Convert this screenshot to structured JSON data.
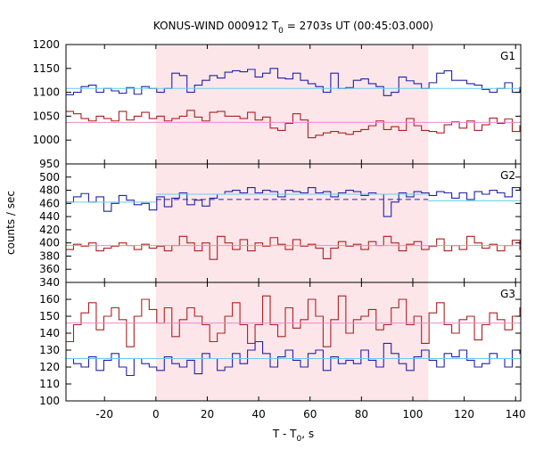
{
  "figure": {
    "title_main": "KONUS-WIND 000912 T",
    "title_sub": "0",
    "title_rest": " = 2703s UT (00:45:03.000)",
    "ylabel": "counts / sec",
    "xlabel_main": "T - T",
    "xlabel_sub": "0",
    "xlabel_rest": ", s"
  },
  "chart_data": [
    {
      "type": "line",
      "panel": "G1",
      "title": "G1",
      "xlim": [
        -35,
        142
      ],
      "ylim": [
        950,
        1200
      ],
      "yticks": [
        950,
        1000,
        1050,
        1100,
        1150,
        1200
      ],
      "xticks": [
        -20,
        0,
        20,
        40,
        60,
        80,
        100,
        120,
        140
      ],
      "shaded_interval": [
        0,
        106
      ],
      "step_width": 2.944,
      "x_start": -35,
      "series": [
        {
          "color": "#2222aa",
          "style": "step",
          "values": [
            1095,
            1100,
            1112,
            1115,
            1100,
            1108,
            1103,
            1098,
            1110,
            1096,
            1112,
            1108,
            1100,
            1108,
            1140,
            1135,
            1100,
            1115,
            1125,
            1135,
            1130,
            1142,
            1145,
            1143,
            1148,
            1132,
            1140,
            1150,
            1130,
            1128,
            1140,
            1125,
            1118,
            1112,
            1100,
            1140,
            1108,
            1110,
            1125,
            1128,
            1118,
            1112,
            1093,
            1100,
            1132,
            1124,
            1118,
            1108,
            1120,
            1140,
            1145,
            1125,
            1125,
            1118,
            1115,
            1106,
            1100,
            1108,
            1120,
            1100,
            1110,
            1118,
            1112,
            1120,
            1125,
            1108,
            1120,
            1112,
            1130,
            1120,
            1100,
            1098,
            1110,
            1130,
            1105,
            1130,
            1115,
            1130,
            1110,
            1102,
            1108,
            1110,
            1108,
            1128,
            1120,
            1132,
            1113,
            1105,
            1125,
            1116,
            1132,
            1100,
            1098,
            1112,
            1105,
            1130,
            1108,
            1118,
            1115,
            1123,
            1102,
            1110,
            1094,
            1080,
            1108,
            1100,
            1128,
            1118,
            1130,
            1100,
            1110,
            1128,
            1106,
            1118,
            1116,
            1112,
            1106,
            1108,
            1120,
            1100,
            1118,
            1130,
            1122,
            1110,
            1115,
            1120,
            1102,
            1108,
            1128,
            1118,
            1110,
            1120,
            1106,
            1118,
            1100,
            1126,
            1112,
            1103,
            1120,
            1122,
            1130,
            1115,
            1100,
            1110,
            1108,
            1128,
            1112,
            1120,
            1115
          ]
        },
        {
          "color": "#aa2222",
          "style": "step",
          "values": [
            1060,
            1055,
            1045,
            1040,
            1050,
            1045,
            1040,
            1060,
            1042,
            1050,
            1058,
            1045,
            1050,
            1040,
            1045,
            1050,
            1062,
            1048,
            1040,
            1058,
            1060,
            1050,
            1050,
            1045,
            1058,
            1042,
            1048,
            1025,
            1020,
            1035,
            1055,
            1042,
            1005,
            1010,
            1015,
            1018,
            1015,
            1012,
            1018,
            1022,
            1030,
            1040,
            1022,
            1028,
            1020,
            1045,
            1030,
            1020,
            1018,
            1015,
            1032,
            1038,
            1025,
            1040,
            1020,
            1032,
            1046,
            1035,
            1044,
            1018,
            1030,
            1040,
            1050,
            1010,
            1030,
            1052,
            1035,
            1048,
            1015,
            1038,
            1015,
            1020,
            1042,
            1020,
            1028,
            1020,
            1015,
            1060,
            1042,
            1012,
            1050,
            1040,
            1070,
            1048,
            1002,
            1022,
            1040,
            1018,
            1048,
            1040,
            1052,
            1030,
            1058,
            1040,
            1050,
            1060,
            1048,
            1060,
            1040,
            1045,
            1052,
            1058,
            1030,
            1050,
            1045,
            1060,
            1035,
            1058,
            1040,
            1048,
            1058,
            1050,
            1070,
            1010,
            1020,
            1042,
            1070,
            1048,
            1060,
            1052,
            1072,
            1050,
            1058,
            1045,
            1050,
            1060,
            1048,
            1055,
            1040,
            1045,
            1050,
            1058,
            1038,
            1048,
            1040,
            1062,
            1070,
            1048,
            1055,
            1065,
            1048,
            1050,
            1060,
            1045,
            1050,
            1040,
            1058,
            1052
          ]
        }
      ],
      "fits": [
        {
          "color": "#66ccee",
          "style": "solid",
          "segments": [
            [
              -35,
              142,
              1108
            ]
          ]
        },
        {
          "color": "#ee88cc",
          "style": "solid",
          "segments": [
            [
              -35,
              142,
              1037
            ]
          ]
        }
      ]
    },
    {
      "type": "line",
      "panel": "G2",
      "title": "G2",
      "xlim": [
        -35,
        142
      ],
      "ylim": [
        340,
        520
      ],
      "yticks": [
        340,
        360,
        380,
        400,
        420,
        440,
        460,
        480,
        500
      ],
      "xticks": [
        -20,
        0,
        20,
        40,
        60,
        80,
        100,
        120,
        140
      ],
      "shaded_interval": [
        0,
        106
      ],
      "step_width": 2.944,
      "x_start": -35,
      "series": [
        {
          "color": "#2222aa",
          "style": "step",
          "values": [
            462,
            470,
            475,
            462,
            470,
            448,
            460,
            472,
            465,
            458,
            460,
            450,
            470,
            455,
            468,
            476,
            458,
            465,
            456,
            468,
            474,
            478,
            480,
            476,
            484,
            476,
            480,
            478,
            470,
            480,
            478,
            476,
            484,
            476,
            478,
            470,
            476,
            480,
            478,
            472,
            476,
            474,
            440,
            462,
            476,
            470,
            478,
            476,
            472,
            478,
            476,
            468,
            476,
            466,
            478,
            474,
            480,
            476,
            470,
            484,
            480,
            478,
            484,
            490,
            486,
            478,
            472,
            474,
            476,
            480,
            466,
            484,
            478,
            476,
            470,
            462,
            470,
            476,
            466,
            462,
            472,
            474,
            470,
            466,
            476,
            470,
            466,
            468,
            474,
            472,
            468,
            470,
            466,
            462,
            472,
            468,
            470,
            462,
            468,
            470,
            464,
            466,
            460,
            470,
            462,
            464,
            468,
            460,
            466,
            468,
            462,
            464,
            460,
            466,
            462,
            464,
            468,
            460,
            462,
            466,
            464,
            462,
            460,
            466,
            462,
            460,
            464,
            462,
            466,
            460,
            464,
            462,
            460,
            466,
            462,
            464,
            460,
            462,
            466,
            460,
            462,
            464,
            460,
            466,
            462,
            464,
            460,
            462,
            466,
            464
          ]
        },
        {
          "color": "#aa2222",
          "style": "step",
          "values": [
            390,
            398,
            395,
            400,
            388,
            392,
            395,
            400,
            396,
            390,
            398,
            392,
            395,
            388,
            396,
            410,
            400,
            388,
            400,
            375,
            410,
            400,
            390,
            405,
            388,
            400,
            395,
            408,
            398,
            390,
            405,
            395,
            398,
            392,
            376,
            392,
            402,
            395,
            398,
            390,
            402,
            396,
            410,
            400,
            388,
            398,
            402,
            390,
            395,
            406,
            388,
            396,
            390,
            410,
            400,
            392,
            398,
            388,
            396,
            404,
            390,
            412,
            398,
            410,
            382,
            392,
            378,
            390,
            398,
            408,
            386,
            400,
            392,
            406,
            396,
            390,
            402,
            388,
            380,
            392,
            388,
            398,
            378,
            390,
            384,
            382,
            398,
            378,
            390,
            388,
            396,
            392,
            400,
            406,
            390,
            376,
            412,
            394,
            404,
            392,
            398,
            388,
            406,
            396,
            384,
            400,
            392,
            410,
            396,
            388,
            404,
            394,
            386,
            400,
            382,
            406,
            392,
            398,
            388,
            410,
            400,
            386,
            396,
            404,
            392,
            410,
            400,
            388,
            396,
            402,
            394,
            386,
            400,
            392,
            404,
            396,
            388,
            402,
            394,
            398,
            390,
            404,
            392,
            400,
            396,
            388,
            402,
            394,
            398,
            390
          ]
        }
      ],
      "fits": [
        {
          "color": "#66ccee",
          "style": "solid",
          "segments": [
            [
              -35,
              0,
              462
            ],
            [
              0,
              106,
              474
            ],
            [
              106,
              142,
              464
            ]
          ]
        },
        {
          "color": "#2222aa",
          "style": "dashed",
          "segments": [
            [
              0,
              106,
              466
            ]
          ]
        },
        {
          "color": "#ee88cc",
          "style": "solid",
          "segments": [
            [
              -35,
              142,
              396
            ]
          ]
        }
      ]
    },
    {
      "type": "line",
      "panel": "G3",
      "title": "G3",
      "xlim": [
        -35,
        142
      ],
      "ylim": [
        100,
        170
      ],
      "yticks": [
        100,
        110,
        120,
        130,
        140,
        150,
        160
      ],
      "xticks": [
        -20,
        0,
        20,
        40,
        60,
        80,
        100,
        120,
        140
      ],
      "shaded_interval": [
        0,
        106
      ],
      "step_width": 2.944,
      "x_start": -35,
      "series": [
        {
          "color": "#aa2222",
          "style": "step",
          "values": [
            135,
            145,
            152,
            158,
            142,
            150,
            155,
            148,
            132,
            150,
            160,
            154,
            146,
            155,
            138,
            148,
            155,
            150,
            145,
            135,
            140,
            150,
            158,
            145,
            134,
            145,
            162,
            145,
            138,
            155,
            143,
            148,
            160,
            150,
            132,
            148,
            162,
            140,
            148,
            150,
            154,
            142,
            145,
            155,
            160,
            145,
            150,
            134,
            152,
            158,
            145,
            140,
            148,
            150,
            136,
            145,
            152,
            148,
            142,
            150,
            155,
            158,
            145,
            140,
            130,
            148,
            162,
            156,
            150,
            145,
            140,
            158,
            152,
            143,
            130,
            140,
            164,
            158,
            148,
            130,
            150,
            145,
            150,
            142,
            160,
            148,
            140,
            150,
            160,
            152,
            146,
            138,
            148,
            142,
            132,
            152,
            146,
            160,
            150,
            136,
            148,
            142,
            155,
            140,
            150,
            158,
            145,
            135,
            148,
            150,
            138,
            145,
            155,
            142,
            150,
            148,
            138,
            152,
            145,
            156,
            140,
            148,
            150,
            142,
            155,
            145,
            150,
            138,
            148,
            152,
            145,
            140,
            150,
            148,
            142,
            155,
            145,
            150,
            138,
            148,
            152,
            145,
            140,
            150,
            148,
            142,
            155,
            145,
            150,
            148
          ]
        },
        {
          "color": "#2222aa",
          "style": "step",
          "values": [
            125,
            122,
            120,
            126,
            118,
            124,
            128,
            120,
            115,
            125,
            122,
            120,
            118,
            126,
            122,
            120,
            124,
            116,
            128,
            125,
            118,
            120,
            128,
            122,
            130,
            135,
            128,
            120,
            126,
            130,
            124,
            120,
            128,
            130,
            118,
            126,
            122,
            124,
            122,
            130,
            124,
            120,
            134,
            128,
            122,
            118,
            126,
            130,
            124,
            120,
            128,
            126,
            130,
            124,
            120,
            122,
            128,
            125,
            120,
            130,
            128,
            130,
            122,
            124,
            116,
            120,
            124,
            126,
            130,
            122,
            125,
            120,
            124,
            126,
            120,
            118,
            122,
            128,
            120,
            126,
            124,
            118,
            120,
            125,
            130,
            124,
            118,
            122,
            124,
            126,
            120,
            116,
            122,
            124,
            120,
            118,
            126,
            122,
            124,
            120,
            122,
            126,
            130,
            124,
            120,
            118,
            112,
            122,
            128,
            126,
            124,
            120,
            115,
            122,
            126,
            130,
            124,
            118,
            122,
            128,
            122,
            126,
            120,
            124,
            128,
            120,
            116,
            122,
            126,
            124,
            118,
            122,
            126,
            120,
            124,
            118,
            122,
            128,
            124,
            120,
            126,
            122,
            118,
            124,
            126,
            120,
            122,
            124,
            118,
            122
          ]
        }
      ],
      "fits": [
        {
          "color": "#ee88cc",
          "style": "solid",
          "segments": [
            [
              -35,
              142,
              146
            ]
          ]
        },
        {
          "color": "#66ccee",
          "style": "solid",
          "segments": [
            [
              -35,
              142,
              125
            ]
          ]
        }
      ]
    }
  ]
}
